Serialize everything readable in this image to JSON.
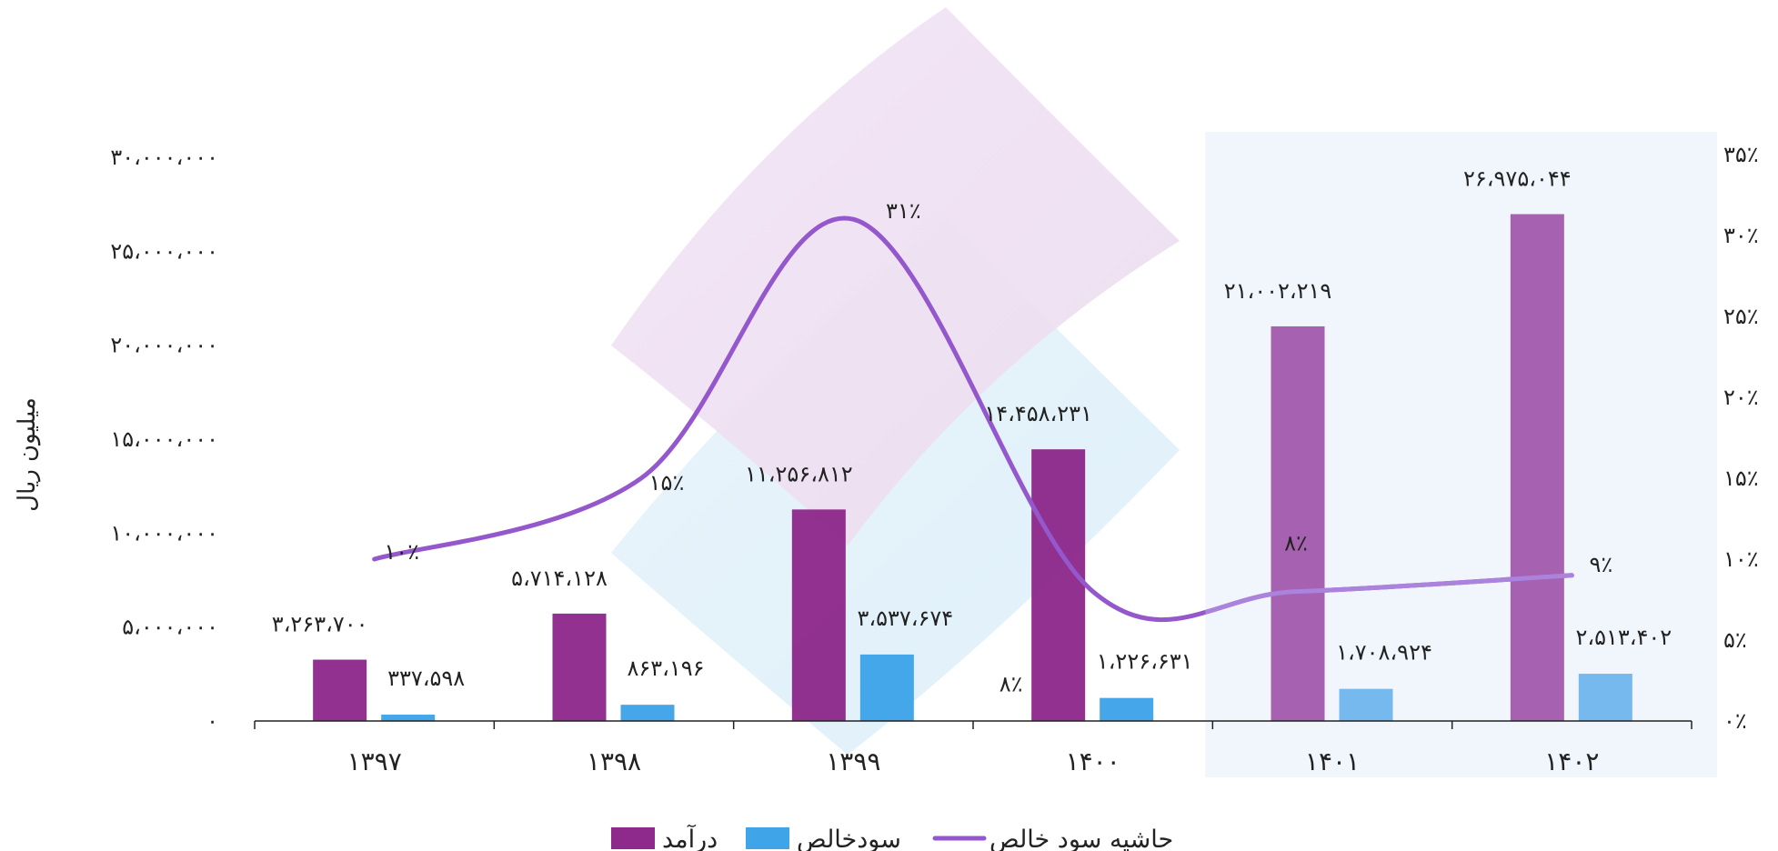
{
  "chart_data": {
    "type": "bar",
    "categories": [
      "۱۳۹۷",
      "۱۳۹۸",
      "۱۳۹۹",
      "۱۴۰۰",
      "۱۴۰۱",
      "۱۴۰۲"
    ],
    "ylabel": "میلیون ریال",
    "ylim": [
      0,
      30000000
    ],
    "y_ticks": [
      {
        "value": 0,
        "label": "۰"
      },
      {
        "value": 5000000,
        "label": "۵،۰۰۰،۰۰۰"
      },
      {
        "value": 10000000,
        "label": "۱۰،۰۰۰،۰۰۰"
      },
      {
        "value": 15000000,
        "label": "۱۵،۰۰۰،۰۰۰"
      },
      {
        "value": 20000000,
        "label": "۲۰،۰۰۰،۰۰۰"
      },
      {
        "value": 25000000,
        "label": "۲۵،۰۰۰،۰۰۰"
      },
      {
        "value": 30000000,
        "label": "۳۰،۰۰۰،۰۰۰"
      }
    ],
    "y2lim": [
      0,
      35
    ],
    "y2_ticks": [
      {
        "value": 0,
        "label": "۰٪"
      },
      {
        "value": 5,
        "label": "۵٪"
      },
      {
        "value": 10,
        "label": "۱۰٪"
      },
      {
        "value": 15,
        "label": "۱۵٪"
      },
      {
        "value": 20,
        "label": "۲۰٪"
      },
      {
        "value": 25,
        "label": "۲۵٪"
      },
      {
        "value": 30,
        "label": "۳۰٪"
      },
      {
        "value": 35,
        "label": "۳۵٪"
      }
    ],
    "highlight_categories": [
      "۱۴۰۱",
      "۱۴۰۲"
    ],
    "series": [
      {
        "name": "درآمد",
        "type": "bar",
        "color": "#8E2A8B",
        "highlight_color": "#A35DAE",
        "values": [
          3263700,
          5714128,
          11256812,
          14458231,
          21002219,
          26975044
        ],
        "labels": [
          "۳،۲۶۳،۷۰۰",
          "۵،۷۱۴،۱۲۸",
          "۱۱،۲۵۶،۸۱۲",
          "۱۴،۴۵۸،۲۳۱",
          "۲۱،۰۰۲،۲۱۹",
          "۲۶،۹۷۵،۰۴۴"
        ]
      },
      {
        "name": "سودخالص",
        "type": "bar",
        "color": "#3FA4E8",
        "highlight_color": "#71B7EE",
        "values": [
          337598,
          863196,
          3537674,
          1226631,
          1708924,
          2513402
        ],
        "labels": [
          "۳۳۷،۵۹۸",
          "۸۶۳،۱۹۶",
          "۳،۵۳۷،۶۷۴",
          "۱،۲۲۶،۶۳۱",
          "۱،۷۰۸،۹۲۴",
          "۲،۵۱۳،۴۰۲"
        ]
      },
      {
        "name": "حاشیه سود خالص",
        "type": "line",
        "axis": "right",
        "color": "#9457CC",
        "highlight_color": "#AB82DC",
        "values": [
          10,
          15,
          31,
          8,
          8,
          9
        ],
        "labels": [
          "۱۰٪",
          "۱۵٪",
          "۳۱٪",
          "۸٪",
          "۸٪",
          "۹٪"
        ]
      }
    ],
    "legend_position": "bottom",
    "grid": false
  }
}
